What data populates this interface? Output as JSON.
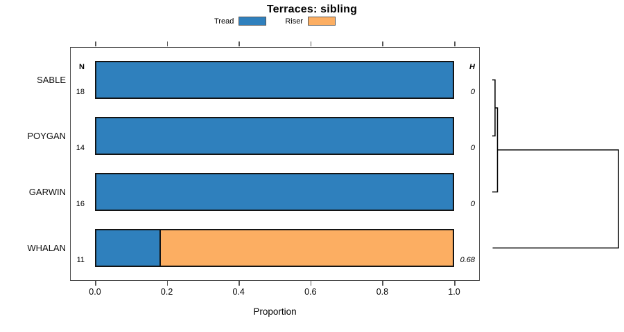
{
  "title": "Terraces: sibling",
  "legend": {
    "items": [
      {
        "label": "Tread",
        "color": "#2f80bd"
      },
      {
        "label": "Riser",
        "color": "#fcae62"
      }
    ]
  },
  "columns": {
    "n_header": "N",
    "h_header": "H"
  },
  "rows": [
    {
      "label": "SABLE",
      "n": "18",
      "h": "0",
      "tread": 1.0,
      "riser": 0.0
    },
    {
      "label": "POYGAN",
      "n": "14",
      "h": "0",
      "tread": 1.0,
      "riser": 0.0
    },
    {
      "label": "GARWIN",
      "n": "16",
      "h": "0",
      "tread": 1.0,
      "riser": 0.0
    },
    {
      "label": "WHALAN",
      "n": "11",
      "h": "0.68",
      "tread": 0.18,
      "riser": 0.82
    }
  ],
  "axis": {
    "label": "Proportion",
    "ticks": [
      "0.0",
      "0.2",
      "0.4",
      "0.6",
      "0.8",
      "1.0"
    ]
  },
  "chart_data": {
    "type": "bar",
    "orientation": "horizontal",
    "stacked": true,
    "title": "Terraces: sibling",
    "xlabel": "Proportion",
    "xlim": [
      0,
      1
    ],
    "x_ticks": [
      0.0,
      0.2,
      0.4,
      0.6,
      0.8,
      1.0
    ],
    "grid": false,
    "legend_position": "top-center",
    "categories": [
      "SABLE",
      "POYGAN",
      "GARWIN",
      "WHALAN"
    ],
    "series": [
      {
        "name": "Tread",
        "color": "#2f80bd",
        "values": [
          1.0,
          1.0,
          1.0,
          0.18
        ]
      },
      {
        "name": "Riser",
        "color": "#fcae62",
        "values": [
          0.0,
          0.0,
          0.0,
          0.82
        ]
      }
    ],
    "counts": {
      "header": "N",
      "values": [
        18,
        14,
        16,
        11
      ]
    },
    "entropy": {
      "header": "H",
      "values": [
        0,
        0,
        0,
        0.68
      ]
    },
    "dendrogram": {
      "side": "right",
      "leaves": [
        "SABLE",
        "POYGAN",
        "GARWIN",
        "WHALAN"
      ],
      "merges": [
        {
          "members": [
            "SABLE",
            "POYGAN"
          ],
          "relative_height": 0.02
        },
        {
          "members": [
            "SABLE",
            "POYGAN",
            "GARWIN"
          ],
          "relative_height": 0.04
        },
        {
          "members": [
            "SABLE",
            "POYGAN",
            "GARWIN",
            "WHALAN"
          ],
          "relative_height": 1.0
        }
      ]
    }
  }
}
